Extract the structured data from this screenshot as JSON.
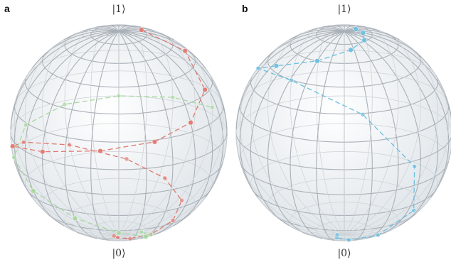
{
  "panels": [
    {
      "letter": "a",
      "top_label": "|1⟩",
      "bottom_label": "|0⟩",
      "trajectories": [
        {
          "color": "#e07a72",
          "style": "dashed-with-markers",
          "points_azimuth_polar_deg": [
            [
              -30,
              14
            ],
            [
              -5,
              38
            ],
            [
              20,
              58
            ],
            [
              45,
              70
            ],
            [
              70,
              76
            ],
            [
              100,
              80
            ],
            [
              135,
              86
            ],
            [
              170,
              94
            ],
            [
              205,
              104
            ],
            [
              240,
              114
            ],
            [
              275,
              124
            ],
            [
              305,
              132
            ],
            [
              335,
              140
            ],
            [
              360,
              150
            ],
            [
              390,
              160
            ],
            [
              420,
              168
            ],
            [
              455,
              174
            ],
            [
              490,
              176
            ]
          ]
        },
        {
          "color": "#a8d8a0",
          "style": "dashed-with-markers",
          "points_azimuth_polar_deg": [
            [
              0,
              168
            ],
            [
              30,
              160
            ],
            [
              60,
              150
            ],
            [
              90,
              138
            ],
            [
              120,
              126
            ],
            [
              150,
              114
            ],
            [
              180,
              104
            ],
            [
              210,
              96
            ],
            [
              240,
              92
            ],
            [
              270,
              90
            ],
            [
              300,
              88
            ],
            [
              330,
              86
            ]
          ]
        }
      ]
    },
    {
      "letter": "b",
      "top_label": "|1⟩",
      "bottom_label": "|0⟩",
      "trajectories": [
        {
          "color": "#6bbfe0",
          "style": "dashed-with-markers",
          "points_azimuth_polar_deg": [
            [
              -40,
              8
            ],
            [
              0,
              10
            ],
            [
              40,
              14
            ],
            [
              80,
              20
            ],
            [
              120,
              30
            ],
            [
              160,
              42
            ],
            [
              200,
              58
            ],
            [
              240,
              78
            ],
            [
              280,
              100
            ],
            [
              320,
              122
            ],
            [
              360,
              140
            ],
            [
              400,
              156
            ],
            [
              440,
              166
            ],
            [
              480,
              172
            ],
            [
              520,
              176
            ]
          ]
        }
      ]
    }
  ]
}
